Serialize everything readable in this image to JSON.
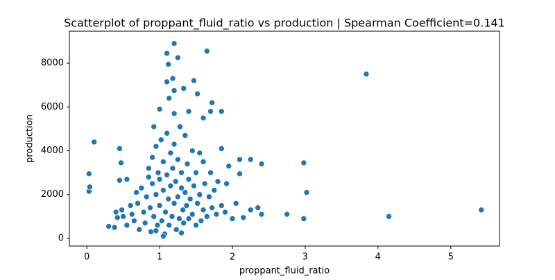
{
  "chart_data": {
    "type": "scatter",
    "title": "Scatterplot of proppant_fluid_ratio vs production | Spearman Coefficient=0.141",
    "x_label": "proppant_fluid_ratio",
    "y_label": "production",
    "color": "#1f77b4",
    "xlim": [
      -0.24,
      5.67
    ],
    "ylim": [
      -350,
      9460
    ],
    "xticks": [
      0,
      1,
      2,
      3,
      4,
      5
    ],
    "yticks": [
      0,
      2000,
      4000,
      6000,
      8000
    ],
    "series": [
      {
        "name": "production",
        "x": [
          0.03,
          0.03,
          0.04,
          0.1,
          0.45,
          0.47,
          0.45,
          0.55,
          3.84,
          5.42,
          4.15,
          2.98,
          3.02,
          2.98,
          2.75,
          2.4,
          2.25,
          2.1,
          2.1,
          1.65,
          1.2,
          1.1,
          1.12,
          1.25,
          1.18,
          1.47,
          1.52,
          1.1,
          1.2,
          1.33,
          1.72,
          1.7,
          1.85,
          1.13,
          1.0,
          1.4,
          1.6,
          1.2,
          0.92,
          1.85,
          1.95,
          0.3,
          0.38,
          0.4,
          0.42,
          0.48,
          0.5,
          0.55,
          0.6,
          0.62,
          0.65,
          0.68,
          0.7,
          0.72,
          0.75,
          0.78,
          0.8,
          0.82,
          0.85,
          0.85,
          0.87,
          0.88,
          0.9,
          0.9,
          0.92,
          0.95,
          0.95,
          0.97,
          0.98,
          1.0,
          1.0,
          1.02,
          1.03,
          1.05,
          1.05,
          1.07,
          1.08,
          1.1,
          1.1,
          1.12,
          1.13,
          1.15,
          1.15,
          1.17,
          1.18,
          1.2,
          1.2,
          1.22,
          1.23,
          1.25,
          1.25,
          1.27,
          1.28,
          1.3,
          1.3,
          1.32,
          1.33,
          1.35,
          1.35,
          1.37,
          1.38,
          1.4,
          1.4,
          1.42,
          1.45,
          1.45,
          1.47,
          1.5,
          1.5,
          1.52,
          1.55,
          1.57,
          1.6,
          1.6,
          1.62,
          1.65,
          1.68,
          1.7,
          1.72,
          1.75,
          1.78,
          1.8,
          1.85,
          1.9,
          1.92,
          2.0,
          2.05,
          2.15,
          2.25,
          2.35,
          2.4,
          1.55,
          1.3,
          1.05,
          0.95
        ],
        "values": [
          2950,
          2150,
          2350,
          4400,
          4100,
          3450,
          2650,
          2700,
          7500,
          1300,
          1000,
          3450,
          2100,
          900,
          1100,
          3400,
          3600,
          3600,
          2950,
          8550,
          8900,
          8450,
          7950,
          8250,
          7300,
          7200,
          6600,
          7150,
          6750,
          6850,
          6200,
          5800,
          5800,
          6400,
          5900,
          5800,
          5500,
          5700,
          5100,
          4100,
          3300,
          550,
          500,
          1200,
          950,
          1300,
          1000,
          600,
          1500,
          1100,
          800,
          2100,
          1600,
          400,
          2300,
          1200,
          700,
          1900,
          2800,
          3200,
          1400,
          300,
          2500,
          3700,
          1000,
          4200,
          2000,
          600,
          3000,
          1500,
          2700,
          4500,
          800,
          3500,
          2200,
          200,
          1200,
          4800,
          2900,
          1800,
          600,
          3900,
          2400,
          1000,
          3200,
          1600,
          4300,
          2600,
          400,
          3600,
          1900,
          900,
          5100,
          2300,
          3000,
          1300,
          700,
          4700,
          2100,
          1500,
          3400,
          900,
          2700,
          1800,
          4000,
          1100,
          2400,
          600,
          3000,
          1600,
          2000,
          800,
          3500,
          1300,
          2500,
          1000,
          1900,
          3000,
          1400,
          2200,
          1100,
          2600,
          1500,
          1200,
          2500,
          900,
          1600,
          950,
          1300,
          1400,
          1100,
          3900,
          250,
          100,
          350
        ]
      }
    ]
  }
}
